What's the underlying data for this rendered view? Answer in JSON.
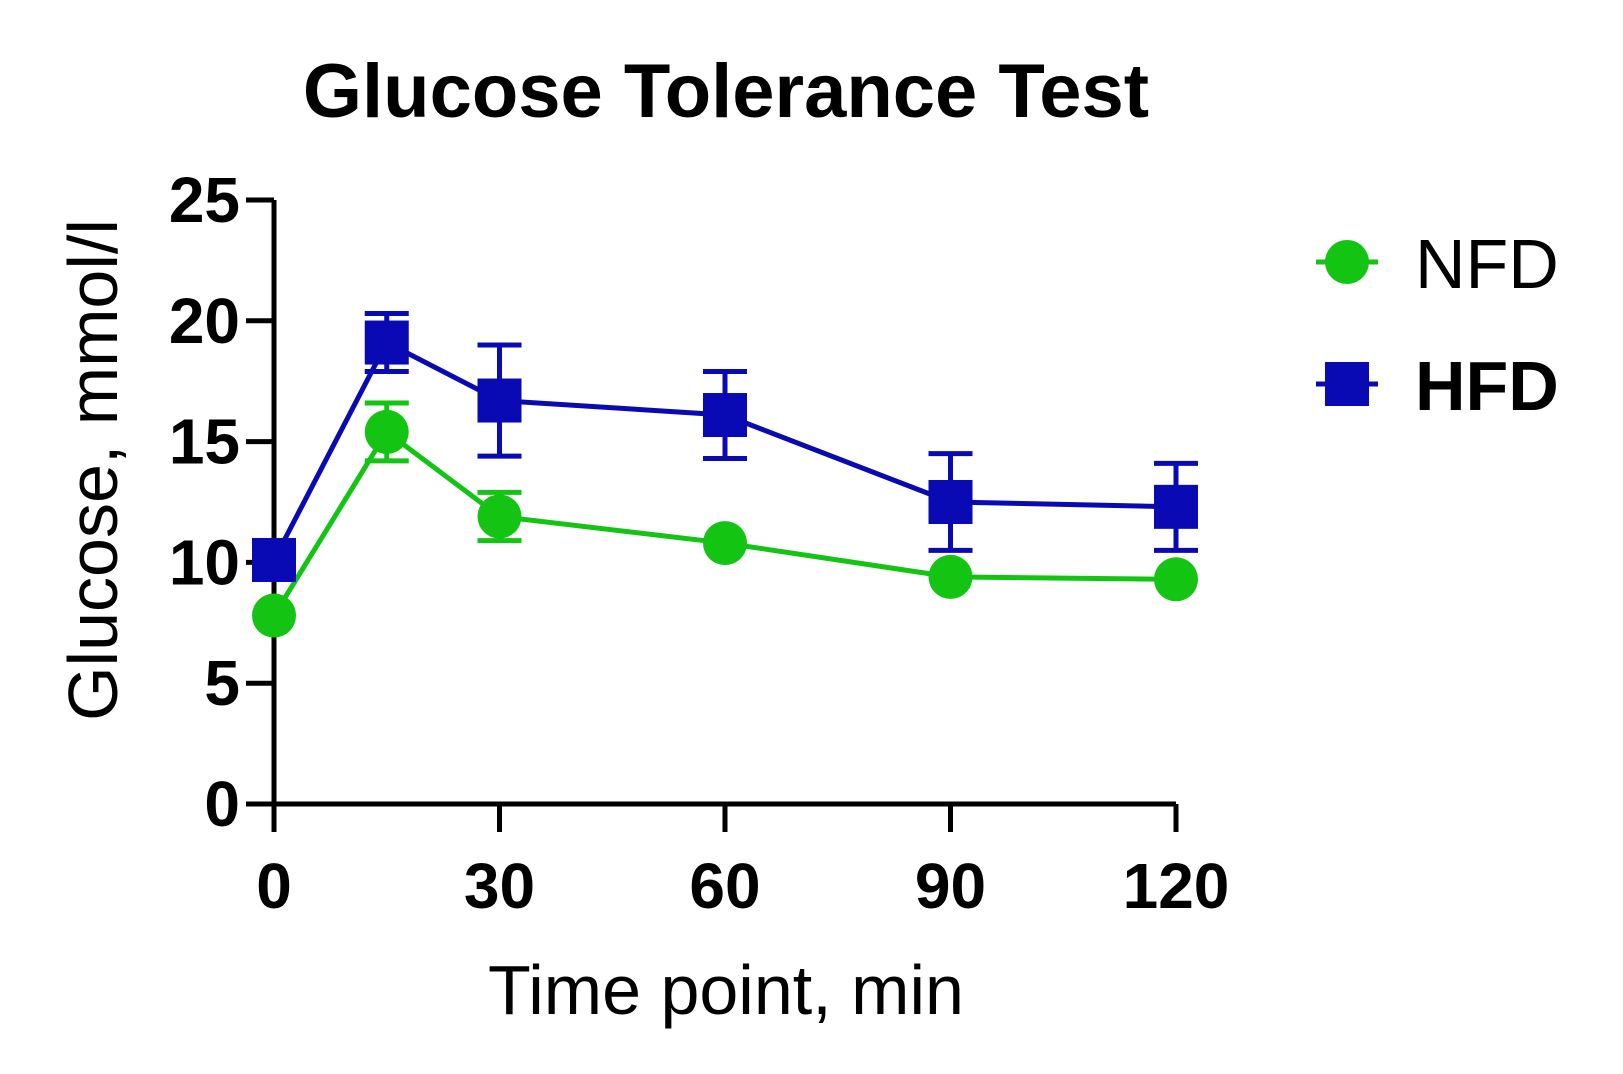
{
  "chart_data": {
    "type": "line",
    "title": "Glucose Tolerance Test",
    "xlabel": "Time point, min",
    "ylabel": "Glucose, mmol/l",
    "xlim": [
      0,
      120
    ],
    "ylim": [
      0,
      25
    ],
    "xticks": [
      "0",
      "30",
      "60",
      "90",
      "120"
    ],
    "yticks": [
      "0",
      "5",
      "10",
      "15",
      "20",
      "25"
    ],
    "grid": false,
    "legend_position": "right",
    "x": [
      0,
      15,
      30,
      60,
      90,
      120
    ],
    "series": [
      {
        "name": "NFD",
        "marker": "circle",
        "color": "#13C413",
        "values": [
          7.8,
          15.4,
          11.9,
          10.8,
          9.4,
          9.3
        ],
        "error": [
          0.0,
          1.2,
          1.0,
          0.0,
          0.0,
          0.0
        ]
      },
      {
        "name": "HFD",
        "marker": "square",
        "color": "#0A0AB4",
        "values": [
          10.1,
          19.1,
          16.7,
          16.1,
          12.5,
          12.3
        ],
        "error": [
          0.0,
          1.2,
          2.3,
          1.8,
          2.0,
          1.8
        ]
      }
    ]
  }
}
